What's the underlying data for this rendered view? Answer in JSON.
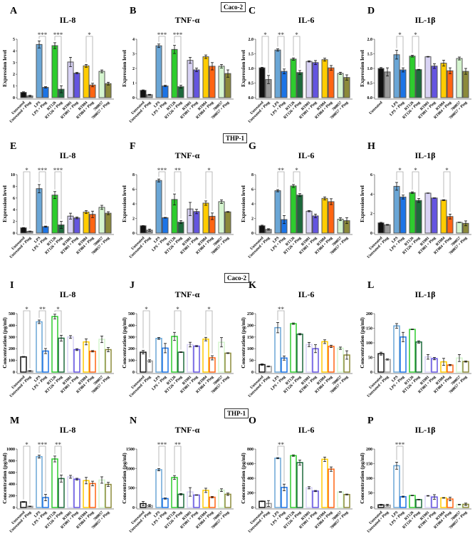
{
  "sections": [
    "Caco-2",
    "THP-1",
    "Caco-2",
    "THP-1"
  ],
  "categories": [
    "Untreated",
    "Untreated + Ping",
    "LPS",
    "LPS + Ping",
    "RT126",
    "RT126 + Ping",
    "RT001",
    "RT001 + Ping",
    "RT084",
    "RT084 + Ping",
    "700057",
    "700057 + Ping"
  ],
  "colors": {
    "fill": [
      "#111111",
      "#9a9a9a",
      "#6aa6d6",
      "#1c74e6",
      "#2ecc2e",
      "#1d6a3c",
      "#d9d3f5",
      "#6454e0",
      "#ffcc00",
      "#ff6512",
      "#d5f5cf",
      "#8c8a3a"
    ],
    "stroke_dark": "#555555"
  },
  "chart_data": [
    {
      "letter": "A",
      "title": "IL-8",
      "ylabel": "Expression level",
      "style": "filled",
      "ylim": [
        0,
        5
      ],
      "ticks": [
        "0",
        "1",
        "2",
        "3",
        "4",
        "5"
      ],
      "values": [
        0.45,
        0.15,
        4.55,
        0.88,
        4.45,
        0.72,
        3.05,
        2.1,
        2.72,
        1.08,
        2.25,
        1.2
      ],
      "err": [
        0.05,
        0.05,
        0.3,
        0.06,
        0.25,
        0.3,
        0.4,
        0.06,
        0.12,
        0.15,
        0.12,
        0.12
      ],
      "sig": [
        {
          "group": 1,
          "label": "***"
        },
        {
          "group": 2,
          "label": "***"
        },
        {
          "group": 4,
          "label": "*"
        }
      ]
    },
    {
      "letter": "B",
      "title": "TNF-α",
      "ylabel": "Expression level",
      "style": "filled",
      "ylim": [
        0,
        4
      ],
      "ticks": [
        "0",
        "1",
        "2",
        "3",
        "4"
      ],
      "values": [
        0.5,
        0.2,
        3.55,
        0.8,
        3.3,
        0.75,
        2.55,
        1.9,
        2.8,
        2.15,
        2.15,
        1.65
      ],
      "err": [
        0.03,
        0.03,
        0.12,
        0.05,
        0.28,
        0.1,
        0.2,
        0.12,
        0.12,
        0.25,
        0.12,
        0.25
      ],
      "sig": [
        {
          "group": 1,
          "label": "***"
        },
        {
          "group": 2,
          "label": "***"
        }
      ]
    },
    {
      "letter": "C",
      "title": "IL-6",
      "ylabel": "Expression level",
      "style": "filled",
      "ylim": [
        0,
        2
      ],
      "ticks": [
        "0.0",
        "0.5",
        "1.0",
        "1.5",
        "2.0"
      ],
      "values": [
        1.02,
        0.62,
        1.63,
        0.9,
        1.32,
        0.86,
        1.24,
        1.2,
        1.3,
        1.02,
        0.83,
        0.69
      ],
      "err": [
        0.02,
        0.14,
        0.04,
        0.08,
        0.04,
        0.07,
        0.02,
        0.07,
        0.05,
        0.08,
        0.04,
        0.09
      ],
      "sig": [
        {
          "group": 0,
          "label": "*"
        },
        {
          "group": 1,
          "label": "**"
        },
        {
          "group": 2,
          "label": "*"
        }
      ]
    },
    {
      "letter": "D",
      "title": "IL-1β",
      "ylabel": "Expression level",
      "style": "filled",
      "ylim": [
        0,
        2
      ],
      "ticks": [
        "0.0",
        "0.5",
        "1.0",
        "1.5",
        "2.0"
      ],
      "values": [
        1.0,
        0.88,
        1.47,
        0.95,
        1.42,
        0.96,
        1.4,
        1.08,
        1.18,
        0.92,
        1.34,
        0.9
      ],
      "err": [
        0.03,
        0.14,
        0.15,
        0.07,
        0.03,
        0.01,
        0.01,
        0.08,
        0.1,
        0.1,
        0.05,
        0.1
      ],
      "sig": [
        {
          "group": 1,
          "label": "*"
        },
        {
          "group": 2,
          "label": "*"
        }
      ],
      "hidden_labels": [
        1
      ]
    },
    {
      "letter": "E",
      "title": "IL-8",
      "ylabel": "Expression level",
      "style": "filled",
      "ylim": [
        0,
        10
      ],
      "ticks": [
        "0",
        "2",
        "4",
        "6",
        "8",
        "10"
      ],
      "values": [
        0.9,
        0.3,
        7.6,
        1.1,
        6.5,
        1.4,
        2.9,
        2.6,
        3.6,
        3.2,
        4.4,
        3.4
      ],
      "err": [
        0.05,
        0.05,
        0.7,
        0.1,
        0.6,
        0.6,
        0.5,
        0.15,
        0.25,
        0.55,
        0.35,
        0.25
      ],
      "sig": [
        {
          "group": 0,
          "label": "*"
        },
        {
          "group": 1,
          "label": "***"
        },
        {
          "group": 2,
          "label": "***"
        }
      ]
    },
    {
      "letter": "F",
      "title": "TNF-α",
      "ylabel": "Expression level",
      "style": "filled",
      "ylim": [
        0,
        8
      ],
      "ticks": [
        "0",
        "2",
        "4",
        "6",
        "8"
      ],
      "values": [
        1.0,
        0.4,
        7.2,
        2.1,
        4.6,
        1.5,
        3.3,
        2.95,
        4.1,
        2.3,
        4.3,
        2.9
      ],
      "err": [
        0.02,
        0.15,
        0.2,
        0.05,
        0.75,
        0.2,
        0.9,
        0.3,
        0.3,
        0.45,
        0.25,
        0.05
      ],
      "sig": [
        {
          "group": 1,
          "label": "***"
        },
        {
          "group": 2,
          "label": "**"
        },
        {
          "group": 4,
          "label": "*"
        }
      ]
    },
    {
      "letter": "G",
      "title": "IL-6",
      "ylabel": "Expression level",
      "style": "filled",
      "ylim": [
        0,
        8
      ],
      "ticks": [
        "0",
        "2",
        "4",
        "6",
        "8"
      ],
      "values": [
        1.0,
        0.5,
        5.8,
        1.85,
        6.45,
        5.2,
        3.0,
        2.35,
        4.75,
        4.3,
        1.9,
        1.7
      ],
      "err": [
        0.08,
        0.1,
        0.15,
        0.55,
        0.2,
        0.2,
        0.08,
        0.25,
        0.2,
        0.4,
        0.2,
        0.4
      ],
      "sig": [
        {
          "group": 1,
          "label": "**"
        },
        {
          "group": 2,
          "label": "*"
        }
      ]
    },
    {
      "letter": "H",
      "title": "IL-1β",
      "ylabel": "Expression level",
      "style": "filled",
      "ylim": [
        0,
        6
      ],
      "ticks": [
        "0",
        "2",
        "4",
        "6"
      ],
      "values": [
        1.05,
        0.85,
        4.8,
        3.7,
        4.15,
        3.35,
        4.1,
        3.6,
        3.38,
        1.7,
        1.1,
        1.0
      ],
      "err": [
        0.05,
        0.04,
        0.4,
        0.2,
        0.08,
        0.2,
        0.02,
        0.02,
        0.05,
        0.25,
        0.02,
        0.25
      ],
      "sig": [
        {
          "group": 1,
          "label": "*"
        },
        {
          "group": 2,
          "label": "*"
        },
        {
          "group": 4,
          "label": "*"
        }
      ]
    },
    {
      "letter": "I",
      "title": "IL-8",
      "ylabel": "Concentration (pg/ml)",
      "style": "outline",
      "ylim": [
        0,
        500
      ],
      "ticks": [
        "0",
        "100",
        "200",
        "300",
        "400",
        "500"
      ],
      "values": [
        130,
        10,
        430,
        180,
        475,
        290,
        300,
        192,
        258,
        178,
        280,
        192
      ],
      "err": [
        4,
        3,
        15,
        22,
        20,
        25,
        12,
        8,
        25,
        6,
        28,
        18
      ],
      "sig": [
        {
          "group": 0,
          "label": "*"
        },
        {
          "group": 1,
          "label": "**"
        },
        {
          "group": 2,
          "label": "*"
        }
      ]
    },
    {
      "letter": "J",
      "title": "TNF-α",
      "ylabel": "Concentration (pg/ml)",
      "style": "outline",
      "ylim": [
        0,
        500
      ],
      "ticks": [
        "0",
        "100",
        "200",
        "300",
        "400",
        "500"
      ],
      "values": [
        170,
        95,
        288,
        205,
        305,
        170,
        235,
        222,
        282,
        122,
        255,
        162
      ],
      "err": [
        15,
        10,
        8,
        40,
        35,
        3,
        20,
        5,
        15,
        18,
        40,
        3
      ],
      "sig": [
        {
          "group": 0,
          "label": "*"
        },
        {
          "group": 2,
          "label": "*"
        },
        {
          "group": 4,
          "label": "*"
        }
      ]
    },
    {
      "letter": "K",
      "title": "IL-6",
      "ylabel": "Concentration (pg/ml)",
      "style": "outline",
      "ylim": [
        0,
        250
      ],
      "ticks": [
        "0",
        "50",
        "100",
        "150",
        "200",
        "250"
      ],
      "values": [
        32,
        24,
        190,
        60,
        207,
        162,
        118,
        100,
        130,
        110,
        102,
        73
      ],
      "err": [
        3,
        2,
        22,
        9,
        3,
        3,
        9,
        17,
        8,
        5,
        5,
        18
      ],
      "sig": [
        {
          "group": 1,
          "label": "**"
        }
      ]
    },
    {
      "letter": "L",
      "title": "IL-1β",
      "ylabel": "Concentration (pg/ml)",
      "style": "outline",
      "ylim": [
        0,
        200
      ],
      "ticks": [
        "0",
        "50",
        "100",
        "150",
        "200"
      ],
      "values": [
        63,
        43,
        158,
        120,
        146,
        103,
        52,
        46,
        35,
        24,
        48,
        36
      ],
      "err": [
        5,
        2,
        8,
        16,
        1,
        4,
        8,
        4,
        12,
        2,
        12,
        2
      ],
      "sig": []
    },
    {
      "letter": "M",
      "title": "IL-8",
      "ylabel": "Concentration (pg/ml)",
      "style": "outline",
      "ylim": [
        0,
        1000
      ],
      "ticks": [
        "0",
        "200",
        "400",
        "600",
        "800",
        "1000"
      ],
      "values": [
        95,
        20,
        870,
        170,
        830,
        495,
        525,
        485,
        460,
        410,
        470,
        395
      ],
      "err": [
        8,
        3,
        25,
        55,
        50,
        60,
        25,
        15,
        55,
        40,
        55,
        35
      ],
      "sig": [
        {
          "group": 0,
          "label": "*"
        },
        {
          "group": 1,
          "label": "***"
        },
        {
          "group": 2,
          "label": "**"
        }
      ]
    },
    {
      "letter": "N",
      "title": "TNF-α",
      "ylabel": "Concentration (pg/ml)",
      "style": "outline",
      "ylim": [
        0,
        1500
      ],
      "ticks": [
        "0",
        "500",
        "1000",
        "1500"
      ],
      "values": [
        100,
        50,
        970,
        230,
        770,
        340,
        400,
        320,
        440,
        265,
        445,
        340
      ],
      "err": [
        55,
        25,
        30,
        15,
        50,
        20,
        110,
        5,
        55,
        20,
        35,
        30
      ],
      "sig": [
        {
          "group": 1,
          "label": "***"
        },
        {
          "group": 2,
          "label": "**"
        }
      ]
    },
    {
      "letter": "O",
      "title": "IL-6",
      "ylabel": "Concentration (pg/ml)",
      "style": "outline",
      "ylim": [
        0,
        800
      ],
      "ticks": [
        "0",
        "200",
        "400",
        "600",
        "800"
      ],
      "values": [
        85,
        55,
        675,
        275,
        710,
        615,
        270,
        225,
        660,
        525,
        212,
        178
      ],
      "err": [
        5,
        40,
        8,
        45,
        10,
        35,
        15,
        8,
        30,
        30,
        4,
        6
      ],
      "sig": [
        {
          "group": 1,
          "label": "**"
        }
      ]
    },
    {
      "letter": "P",
      "title": "IL-1β",
      "ylabel": "Concentration (pg/ml)",
      "style": "outline",
      "ylim": [
        0,
        200
      ],
      "ticks": [
        "0",
        "50",
        "100",
        "150",
        "200"
      ],
      "values": [
        9,
        8,
        143,
        37,
        41,
        27,
        40,
        36,
        33,
        29,
        10,
        11
      ],
      "err": [
        2,
        3,
        12,
        2,
        1,
        1,
        1,
        8,
        1,
        6,
        1,
        4
      ],
      "sig": [
        {
          "group": 1,
          "label": "***"
        }
      ]
    }
  ]
}
